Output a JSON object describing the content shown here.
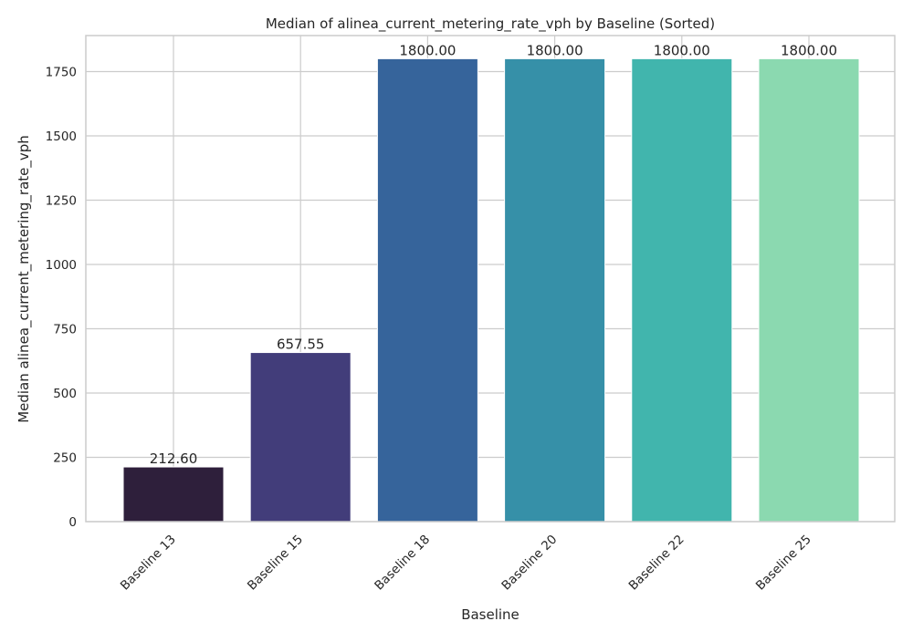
{
  "chart_data": {
    "type": "bar",
    "title": "Median of alinea_current_metering_rate_vph by Baseline (Sorted)",
    "xlabel": "Baseline",
    "ylabel": "Median alinea_current_metering_rate_vph",
    "categories": [
      "Baseline 13",
      "Baseline 15",
      "Baseline 18",
      "Baseline 20",
      "Baseline 22",
      "Baseline 25"
    ],
    "values": [
      212.6,
      657.55,
      1800.0,
      1800.0,
      1800.0,
      1800.0
    ],
    "value_labels": [
      "212.60",
      "657.55",
      "1800.00",
      "1800.00",
      "1800.00",
      "1800.00"
    ],
    "colors": [
      "#2e1f3b",
      "#423d7a",
      "#36649b",
      "#3690a8",
      "#41b5ad",
      "#8bd9b0"
    ],
    "ylim": [
      0,
      1890
    ],
    "yticks": [
      0,
      250,
      500,
      750,
      1000,
      1250,
      1500,
      1750
    ],
    "grid": true,
    "legend": "none"
  }
}
